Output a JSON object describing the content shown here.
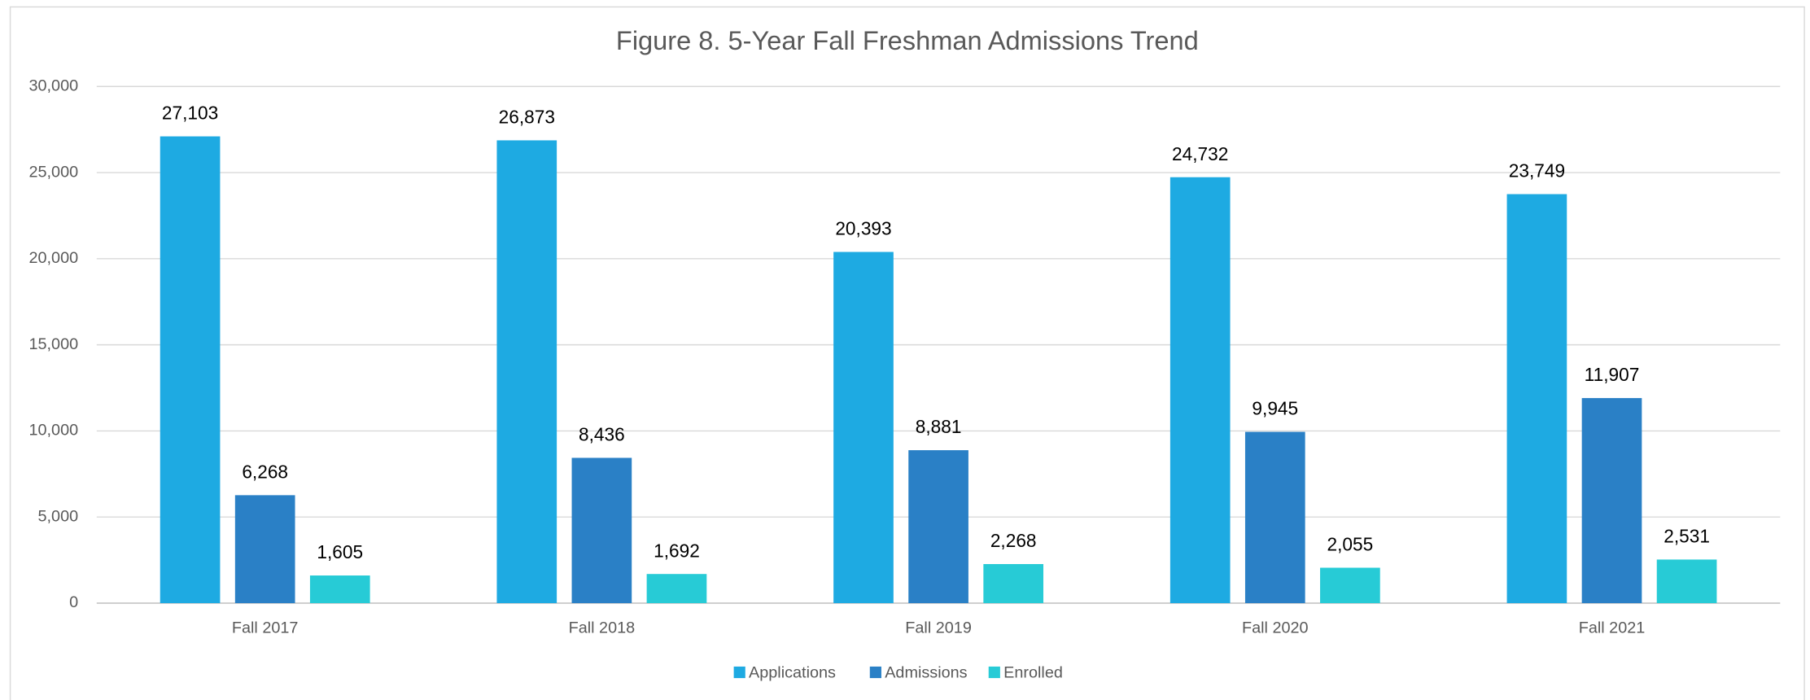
{
  "chart_data": {
    "type": "bar",
    "title": "Figure 8.  5-Year Fall Freshman Admissions Trend",
    "categories": [
      "Fall 2017",
      "Fall 2018",
      "Fall 2019",
      "Fall 2020",
      "Fall 2021"
    ],
    "series": [
      {
        "name": "Applications",
        "color": "#1eaae2",
        "values": [
          27103,
          26873,
          20393,
          24732,
          23749
        ],
        "value_labels": [
          "27,103",
          "26,873",
          "20,393",
          "24,732",
          "23,749"
        ]
      },
      {
        "name": "Admissions",
        "color": "#2a80c6",
        "values": [
          6268,
          8436,
          8881,
          9945,
          11907
        ],
        "value_labels": [
          "6,268",
          "8,436",
          "8,881",
          "9,945",
          "11,907"
        ]
      },
      {
        "name": "Enrolled",
        "color": "#27cbd6",
        "values": [
          1605,
          1692,
          2268,
          2055,
          2531
        ],
        "value_labels": [
          "1,605",
          "1,692",
          "2,268",
          "2,055",
          "2,531"
        ]
      }
    ],
    "ylim": [
      0,
      30000
    ],
    "yticks": [
      0,
      {
        "value": 5000,
        "label": "5,000"
      },
      {
        "value": 10000,
        "label": "10,000"
      },
      {
        "value": 15000,
        "label": "15,000"
      },
      {
        "value": 20000,
        "label": "20,000"
      },
      {
        "value": 25000,
        "label": "25,000"
      },
      {
        "value": 30000,
        "label": "30,000"
      }
    ],
    "grid": true,
    "legend": "bottom"
  }
}
